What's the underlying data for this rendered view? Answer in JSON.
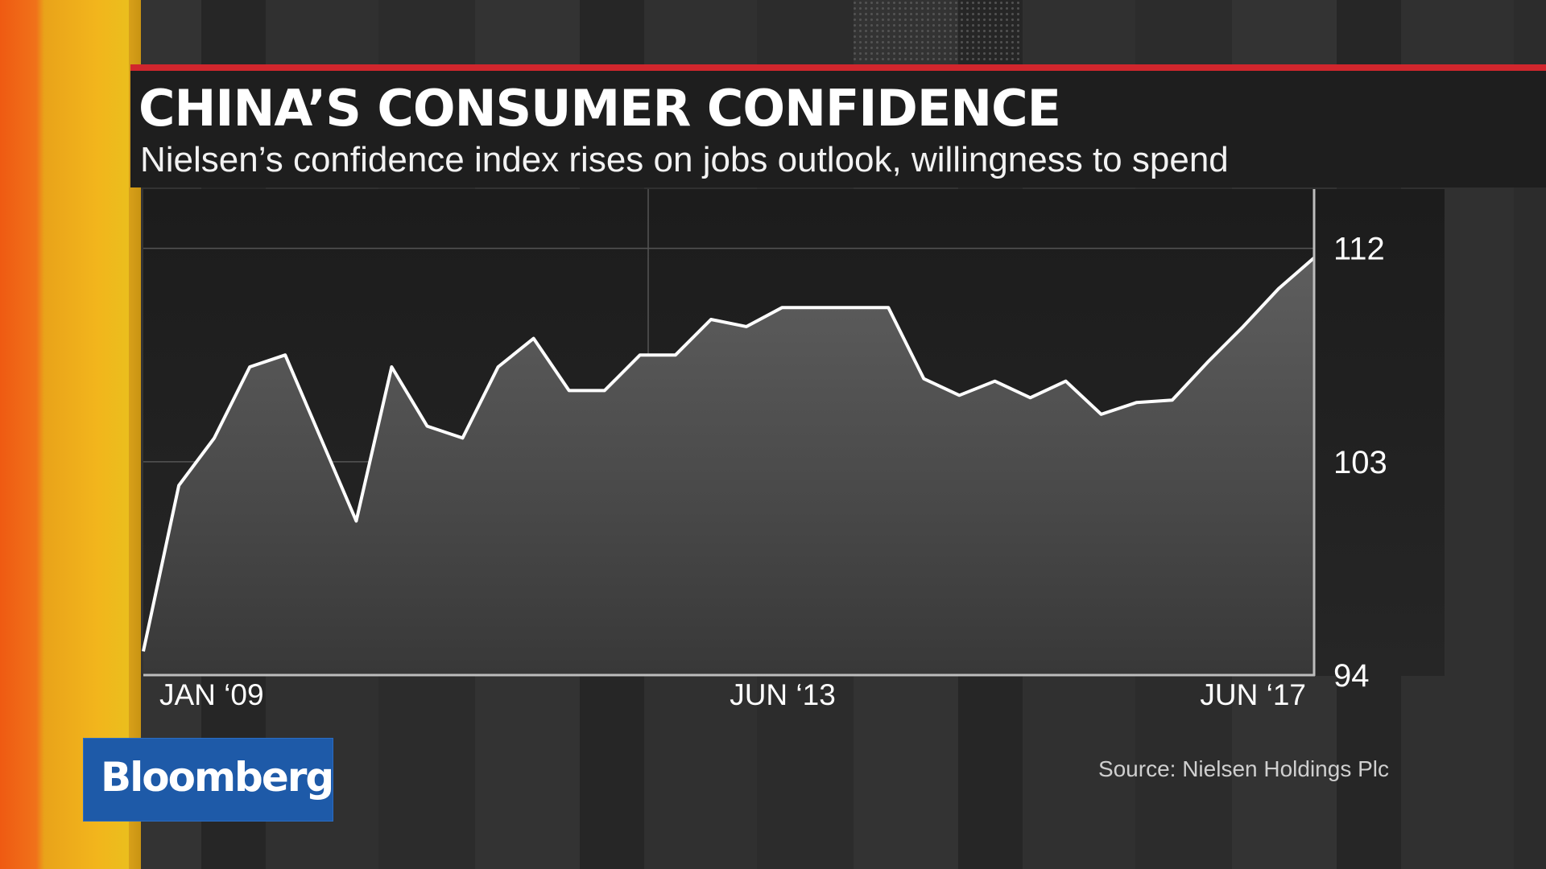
{
  "title": "CHINA’S CONSUMER CONFIDENCE",
  "subtitle": "Nielsen’s confidence index rises on jobs outlook, willingness to spend",
  "source": "Source: Nielsen Holdings Plc",
  "logo": "Bloomberg",
  "colors": {
    "accent_red": "#d1262d",
    "logo_blue": "#1e5aa8",
    "line": "#ffffff"
  },
  "chart_data": {
    "type": "area",
    "x": [
      "2009-Q1",
      "2009-Q2",
      "2009-Q3",
      "2009-Q4",
      "2010-Q1",
      "2010-Q2",
      "2010-Q3",
      "2010-Q4",
      "2011-Q1",
      "2011-Q2",
      "2011-Q3",
      "2011-Q4",
      "2012-Q1",
      "2012-Q2",
      "2012-Q3",
      "2012-Q4",
      "2013-Q1",
      "2013-Q2",
      "2013-Q3",
      "2013-Q4",
      "2014-Q1",
      "2014-Q2",
      "2014-Q3",
      "2014-Q4",
      "2015-Q1",
      "2015-Q2",
      "2015-Q3",
      "2015-Q4",
      "2016-Q1",
      "2016-Q2",
      "2016-Q3",
      "2016-Q4",
      "2017-Q1",
      "2017-Q2"
    ],
    "values": [
      95,
      102,
      104,
      107,
      107.5,
      104,
      100.5,
      107,
      104.5,
      104,
      107,
      108.2,
      106,
      106,
      107.5,
      107.5,
      109,
      108.7,
      109.5,
      109.5,
      109.5,
      109.5,
      106.5,
      105.8,
      106.4,
      105.7,
      106.4,
      105,
      105.5,
      105.6,
      107.2,
      108.7,
      110.3,
      111.6
    ],
    "x_tick_labels": [
      "JAN ‘09",
      "JUN ‘13",
      "JUN ‘17"
    ],
    "y_tick_labels": [
      "112",
      "103",
      "94"
    ],
    "y_ticks": [
      112,
      103,
      94
    ],
    "ylim": [
      94,
      114.5
    ],
    "grid": true,
    "y_axis_position": "right"
  }
}
